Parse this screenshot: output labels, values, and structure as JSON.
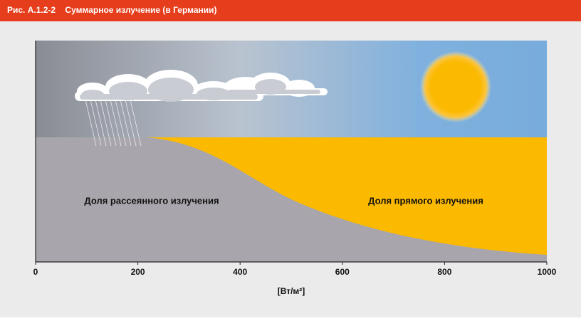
{
  "header": {
    "title": "Рис. A.1.2-2    Суммарное излучение (в Германии)"
  },
  "axis": {
    "label": "[Вт/м²]",
    "lim": [
      0,
      1000
    ],
    "ticks": [
      0,
      200,
      400,
      600,
      800,
      1000
    ]
  },
  "regions": [
    {
      "label": "Доля рассеянного излучения"
    },
    {
      "label": "Доля прямого излучения"
    }
  ]
}
